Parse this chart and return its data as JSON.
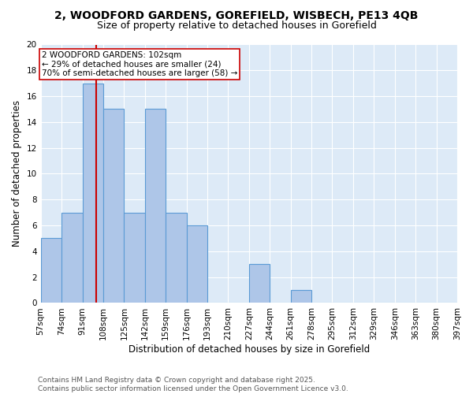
{
  "title1": "2, WOODFORD GARDENS, GOREFIELD, WISBECH, PE13 4QB",
  "title2": "Size of property relative to detached houses in Gorefield",
  "xlabel": "Distribution of detached houses by size in Gorefield",
  "ylabel": "Number of detached properties",
  "bins": [
    "57sqm",
    "74sqm",
    "91sqm",
    "108sqm",
    "125sqm",
    "142sqm",
    "159sqm",
    "176sqm",
    "193sqm",
    "210sqm",
    "227sqm",
    "244sqm",
    "261sqm",
    "278sqm",
    "295sqm",
    "312sqm",
    "329sqm",
    "346sqm",
    "363sqm",
    "380sqm",
    "397sqm"
  ],
  "values": [
    5,
    7,
    17,
    15,
    7,
    15,
    7,
    6,
    0,
    0,
    3,
    0,
    1,
    0,
    0,
    0,
    0,
    0,
    0,
    0
  ],
  "bar_color": "#aec6e8",
  "bar_edge_color": "#5b9bd5",
  "subject_line_color": "#cc0000",
  "annotation_text": "2 WOODFORD GARDENS: 102sqm\n← 29% of detached houses are smaller (24)\n70% of semi-detached houses are larger (58) →",
  "annotation_box_color": "#ffffff",
  "annotation_box_edge_color": "#cc0000",
  "ylim": [
    0,
    20
  ],
  "yticks": [
    0,
    2,
    4,
    6,
    8,
    10,
    12,
    14,
    16,
    18,
    20
  ],
  "footer": "Contains HM Land Registry data © Crown copyright and database right 2025.\nContains public sector information licensed under the Open Government Licence v3.0.",
  "plot_bg_color": "#ddeaf7",
  "fig_bg_color": "#ffffff",
  "grid_color": "#ffffff",
  "title_fontsize": 10,
  "subtitle_fontsize": 9,
  "tick_fontsize": 7.5,
  "axis_label_fontsize": 8.5,
  "footer_fontsize": 6.5,
  "annotation_fontsize": 7.5
}
